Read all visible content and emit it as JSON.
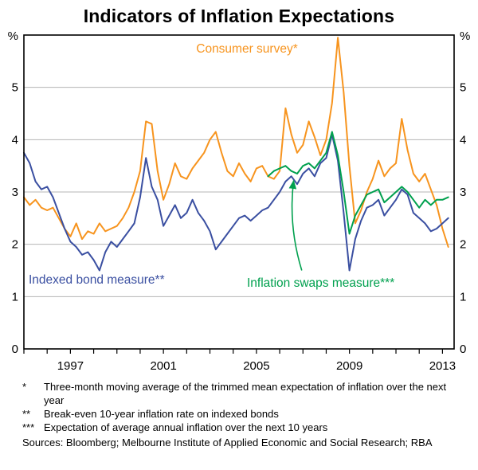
{
  "chart_data": {
    "type": "line",
    "title": "Indicators of Inflation Expectations",
    "y_unit": "%",
    "ylim": [
      0,
      6
    ],
    "yticks": [
      0,
      1,
      2,
      3,
      4,
      5
    ],
    "gridlines": [
      1,
      2,
      3,
      4,
      5
    ],
    "xlim": [
      1995,
      2013.5
    ],
    "xticks_labeled": [
      1997,
      2001,
      2005,
      2009,
      2013
    ],
    "xticks_minor": [
      1995,
      1996,
      1997,
      1998,
      1999,
      2000,
      2001,
      2002,
      2003,
      2004,
      2005,
      2006,
      2007,
      2008,
      2009,
      2010,
      2011,
      2012,
      2013
    ],
    "legend_position": "annotated-inline",
    "grid": true,
    "annotation_arrow": {
      "from_x": 2006.95,
      "from_y": 1.5,
      "to_x": 2006.6,
      "to_y": 3.22
    },
    "series": [
      {
        "key": "consumer-survey",
        "label": "Consumer survey*",
        "color": "#f7941e",
        "points": [
          [
            1995.0,
            2.9
          ],
          [
            1995.25,
            2.75
          ],
          [
            1995.5,
            2.85
          ],
          [
            1995.75,
            2.7
          ],
          [
            1996.0,
            2.65
          ],
          [
            1996.25,
            2.7
          ],
          [
            1996.5,
            2.5
          ],
          [
            1996.75,
            2.3
          ],
          [
            1997.0,
            2.15
          ],
          [
            1997.25,
            2.4
          ],
          [
            1997.5,
            2.1
          ],
          [
            1997.75,
            2.25
          ],
          [
            1998.0,
            2.2
          ],
          [
            1998.25,
            2.4
          ],
          [
            1998.5,
            2.25
          ],
          [
            1998.75,
            2.3
          ],
          [
            1999.0,
            2.35
          ],
          [
            1999.25,
            2.5
          ],
          [
            1999.5,
            2.7
          ],
          [
            1999.75,
            3.0
          ],
          [
            2000.0,
            3.4
          ],
          [
            2000.25,
            4.35
          ],
          [
            2000.5,
            4.3
          ],
          [
            2000.75,
            3.4
          ],
          [
            2001.0,
            2.85
          ],
          [
            2001.25,
            3.15
          ],
          [
            2001.5,
            3.55
          ],
          [
            2001.75,
            3.3
          ],
          [
            2002.0,
            3.25
          ],
          [
            2002.25,
            3.45
          ],
          [
            2002.5,
            3.6
          ],
          [
            2002.75,
            3.75
          ],
          [
            2003.0,
            4.0
          ],
          [
            2003.25,
            4.15
          ],
          [
            2003.5,
            3.75
          ],
          [
            2003.75,
            3.4
          ],
          [
            2004.0,
            3.3
          ],
          [
            2004.25,
            3.55
          ],
          [
            2004.5,
            3.35
          ],
          [
            2004.75,
            3.2
          ],
          [
            2005.0,
            3.45
          ],
          [
            2005.25,
            3.5
          ],
          [
            2005.5,
            3.3
          ],
          [
            2005.75,
            3.25
          ],
          [
            2006.0,
            3.4
          ],
          [
            2006.25,
            4.6
          ],
          [
            2006.5,
            4.1
          ],
          [
            2006.75,
            3.75
          ],
          [
            2007.0,
            3.9
          ],
          [
            2007.25,
            4.35
          ],
          [
            2007.5,
            4.05
          ],
          [
            2007.75,
            3.7
          ],
          [
            2008.0,
            4.0
          ],
          [
            2008.25,
            4.7
          ],
          [
            2008.5,
            5.95
          ],
          [
            2008.75,
            4.9
          ],
          [
            2009.0,
            3.5
          ],
          [
            2009.25,
            2.4
          ],
          [
            2009.5,
            2.65
          ],
          [
            2009.75,
            3.0
          ],
          [
            2010.0,
            3.25
          ],
          [
            2010.25,
            3.6
          ],
          [
            2010.5,
            3.3
          ],
          [
            2010.75,
            3.45
          ],
          [
            2011.0,
            3.55
          ],
          [
            2011.25,
            4.4
          ],
          [
            2011.5,
            3.8
          ],
          [
            2011.75,
            3.35
          ],
          [
            2012.0,
            3.2
          ],
          [
            2012.25,
            3.35
          ],
          [
            2012.5,
            3.05
          ],
          [
            2012.75,
            2.75
          ],
          [
            2013.0,
            2.3
          ],
          [
            2013.25,
            1.95
          ]
        ]
      },
      {
        "key": "indexed-bond",
        "label": "Indexed bond measure**",
        "color": "#3a4fa1",
        "points": [
          [
            1995.0,
            3.75
          ],
          [
            1995.25,
            3.55
          ],
          [
            1995.5,
            3.2
          ],
          [
            1995.75,
            3.05
          ],
          [
            1996.0,
            3.1
          ],
          [
            1996.25,
            2.9
          ],
          [
            1996.5,
            2.6
          ],
          [
            1996.75,
            2.3
          ],
          [
            1997.0,
            2.05
          ],
          [
            1997.25,
            1.95
          ],
          [
            1997.5,
            1.8
          ],
          [
            1997.75,
            1.85
          ],
          [
            1998.0,
            1.7
          ],
          [
            1998.25,
            1.5
          ],
          [
            1998.5,
            1.85
          ],
          [
            1998.75,
            2.05
          ],
          [
            1999.0,
            1.95
          ],
          [
            1999.25,
            2.1
          ],
          [
            1999.5,
            2.25
          ],
          [
            1999.75,
            2.4
          ],
          [
            2000.0,
            2.9
          ],
          [
            2000.25,
            3.65
          ],
          [
            2000.5,
            3.1
          ],
          [
            2000.75,
            2.85
          ],
          [
            2001.0,
            2.35
          ],
          [
            2001.25,
            2.55
          ],
          [
            2001.5,
            2.75
          ],
          [
            2001.75,
            2.5
          ],
          [
            2002.0,
            2.6
          ],
          [
            2002.25,
            2.85
          ],
          [
            2002.5,
            2.6
          ],
          [
            2002.75,
            2.45
          ],
          [
            2003.0,
            2.25
          ],
          [
            2003.25,
            1.9
          ],
          [
            2003.5,
            2.05
          ],
          [
            2003.75,
            2.2
          ],
          [
            2004.0,
            2.35
          ],
          [
            2004.25,
            2.5
          ],
          [
            2004.5,
            2.55
          ],
          [
            2004.75,
            2.45
          ],
          [
            2005.0,
            2.55
          ],
          [
            2005.25,
            2.65
          ],
          [
            2005.5,
            2.7
          ],
          [
            2005.75,
            2.85
          ],
          [
            2006.0,
            3.0
          ],
          [
            2006.25,
            3.2
          ],
          [
            2006.5,
            3.3
          ],
          [
            2006.75,
            3.15
          ],
          [
            2007.0,
            3.35
          ],
          [
            2007.25,
            3.45
          ],
          [
            2007.5,
            3.3
          ],
          [
            2007.75,
            3.55
          ],
          [
            2008.0,
            3.65
          ],
          [
            2008.25,
            4.1
          ],
          [
            2008.5,
            3.6
          ],
          [
            2008.75,
            2.6
          ],
          [
            2009.0,
            1.5
          ],
          [
            2009.25,
            2.1
          ],
          [
            2009.5,
            2.45
          ],
          [
            2009.75,
            2.7
          ],
          [
            2010.0,
            2.75
          ],
          [
            2010.25,
            2.85
          ],
          [
            2010.5,
            2.55
          ],
          [
            2010.75,
            2.7
          ],
          [
            2011.0,
            2.85
          ],
          [
            2011.25,
            3.05
          ],
          [
            2011.5,
            2.95
          ],
          [
            2011.75,
            2.6
          ],
          [
            2012.0,
            2.5
          ],
          [
            2012.25,
            2.4
          ],
          [
            2012.5,
            2.25
          ],
          [
            2012.75,
            2.3
          ],
          [
            2013.0,
            2.4
          ],
          [
            2013.25,
            2.5
          ]
        ]
      },
      {
        "key": "inflation-swaps",
        "label": "Inflation swaps measure***",
        "color": "#00a04e",
        "points": [
          [
            2005.5,
            3.3
          ],
          [
            2005.75,
            3.4
          ],
          [
            2006.0,
            3.45
          ],
          [
            2006.25,
            3.5
          ],
          [
            2006.5,
            3.4
          ],
          [
            2006.75,
            3.35
          ],
          [
            2007.0,
            3.5
          ],
          [
            2007.25,
            3.55
          ],
          [
            2007.5,
            3.45
          ],
          [
            2007.75,
            3.6
          ],
          [
            2008.0,
            3.75
          ],
          [
            2008.25,
            4.15
          ],
          [
            2008.5,
            3.7
          ],
          [
            2008.75,
            3.0
          ],
          [
            2009.0,
            2.2
          ],
          [
            2009.25,
            2.55
          ],
          [
            2009.5,
            2.75
          ],
          [
            2009.75,
            2.95
          ],
          [
            2010.0,
            3.0
          ],
          [
            2010.25,
            3.05
          ],
          [
            2010.5,
            2.8
          ],
          [
            2010.75,
            2.9
          ],
          [
            2011.0,
            3.0
          ],
          [
            2011.25,
            3.1
          ],
          [
            2011.5,
            3.0
          ],
          [
            2011.75,
            2.85
          ],
          [
            2012.0,
            2.7
          ],
          [
            2012.25,
            2.85
          ],
          [
            2012.5,
            2.75
          ],
          [
            2012.75,
            2.85
          ],
          [
            2013.0,
            2.85
          ],
          [
            2013.25,
            2.9
          ]
        ]
      }
    ]
  },
  "footnotes": [
    {
      "marker": "*",
      "text": "Three-month moving average of the trimmed mean expectation of inflation over the next year"
    },
    {
      "marker": "**",
      "text": "Break-even 10-year inflation rate on indexed bonds"
    },
    {
      "marker": "***",
      "text": "Expectation of average annual inflation over the next 10 years"
    }
  ],
  "sources": "Sources: Bloomberg; Melbourne Institute of Applied Economic and Social Research; RBA"
}
